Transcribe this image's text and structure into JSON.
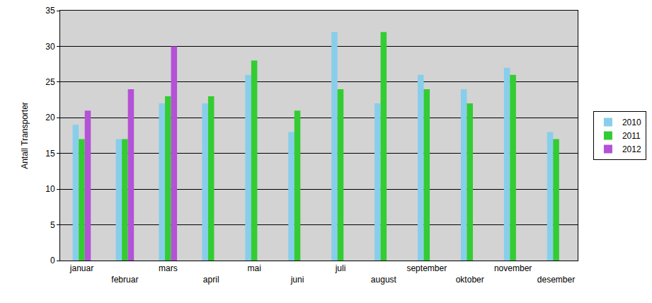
{
  "chart_data": {
    "type": "bar",
    "y_label": "Antall Transporter",
    "categories": [
      "januar",
      "februar",
      "mars",
      "april",
      "mai",
      "juni",
      "juli",
      "august",
      "september",
      "oktober",
      "november",
      "desember"
    ],
    "series": [
      {
        "name": "2010",
        "color": "#87CEEB",
        "values": [
          19,
          17,
          22,
          22,
          26,
          18,
          32,
          22,
          26,
          24,
          27,
          18
        ]
      },
      {
        "name": "2011",
        "color": "#33CC33",
        "values": [
          17,
          17,
          23,
          23,
          28,
          21,
          24,
          32,
          24,
          22,
          26,
          17
        ]
      },
      {
        "name": "2012",
        "color": "#B452D6",
        "values": [
          21,
          24,
          30,
          null,
          null,
          null,
          null,
          null,
          null,
          null,
          null,
          null
        ]
      }
    ],
    "ylim": [
      0,
      35
    ],
    "yticks": [
      0,
      5,
      10,
      15,
      20,
      25,
      30,
      35
    ],
    "grid": true,
    "legend": "right"
  }
}
